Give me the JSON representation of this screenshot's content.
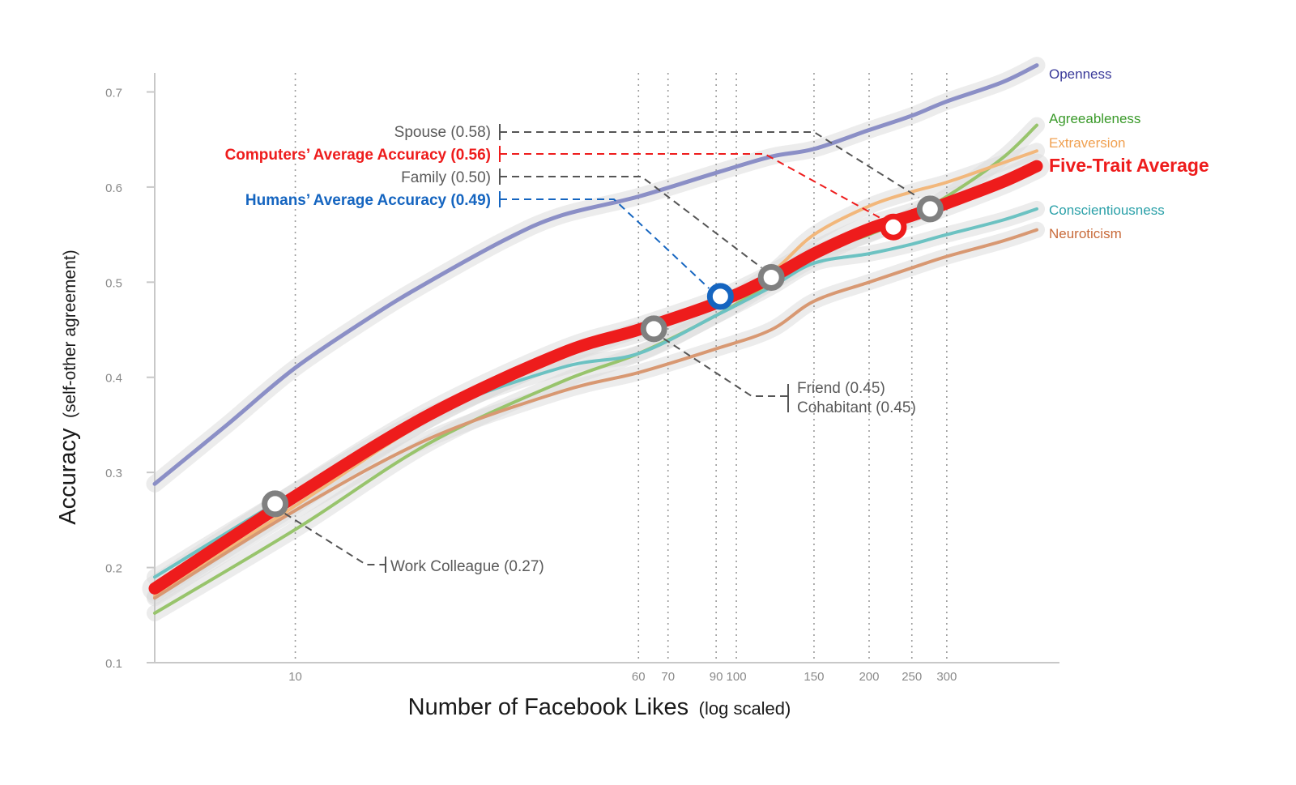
{
  "chart_data": {
    "type": "line",
    "xlabel": "Number of Facebook Likes",
    "xlabel_note": "(log scaled)",
    "ylabel": "Accuracy",
    "ylabel_note": "(self-other agreement)",
    "x_scale": "log",
    "xlim": [
      4.8,
      480
    ],
    "ylim": [
      0.1,
      0.72
    ],
    "y_ticks": [
      0.1,
      0.2,
      0.3,
      0.4,
      0.5,
      0.6,
      0.7
    ],
    "y_tick_labels": [
      "0.1",
      "0.2",
      "0.3",
      "0.4",
      "0.5",
      "0.6",
      "0.7"
    ],
    "x_ticks": [
      10,
      60,
      70,
      90,
      100,
      150,
      200,
      250,
      300
    ],
    "x_tick_labels": [
      "10",
      "60",
      "70",
      "90",
      "100",
      "150",
      "200",
      "250",
      "300"
    ],
    "grid": "vertical dotted at x ticks",
    "series": [
      {
        "name": "Openness",
        "color": "#8b8fc6",
        "width": 5,
        "x": [
          4.8,
          7,
          10,
          15,
          20,
          30,
          40,
          60,
          90,
          120,
          150,
          200,
          250,
          300,
          400,
          480
        ],
        "y": [
          0.288,
          0.35,
          0.41,
          0.465,
          0.5,
          0.545,
          0.57,
          0.59,
          0.615,
          0.632,
          0.64,
          0.66,
          0.675,
          0.69,
          0.71,
          0.728
        ]
      },
      {
        "name": "Agreeableness",
        "color": "#98c46c",
        "width": 4,
        "x": [
          4.8,
          10,
          20,
          40,
          60,
          90,
          120,
          150,
          200,
          250,
          300,
          400,
          480
        ],
        "y": [
          0.152,
          0.24,
          0.33,
          0.395,
          0.425,
          0.465,
          0.5,
          0.53,
          0.55,
          0.57,
          0.59,
          0.63,
          0.665
        ]
      },
      {
        "name": "Extraversion",
        "color": "#f2b77b",
        "width": 4,
        "x": [
          4.8,
          10,
          20,
          40,
          60,
          90,
          120,
          150,
          200,
          250,
          300,
          400,
          480
        ],
        "y": [
          0.17,
          0.265,
          0.355,
          0.42,
          0.45,
          0.475,
          0.51,
          0.55,
          0.58,
          0.595,
          0.605,
          0.625,
          0.638
        ]
      },
      {
        "name": "Conscientiousness",
        "color": "#6cc2c2",
        "width": 4,
        "x": [
          4.8,
          10,
          20,
          40,
          60,
          90,
          120,
          150,
          200,
          250,
          300,
          400,
          480
        ],
        "y": [
          0.19,
          0.28,
          0.36,
          0.41,
          0.425,
          0.465,
          0.495,
          0.52,
          0.53,
          0.54,
          0.55,
          0.565,
          0.577
        ]
      },
      {
        "name": "Neuroticism",
        "color": "#d89872",
        "width": 4,
        "x": [
          4.8,
          10,
          20,
          40,
          60,
          90,
          120,
          150,
          200,
          250,
          300,
          400,
          480
        ],
        "y": [
          0.168,
          0.26,
          0.335,
          0.385,
          0.405,
          0.43,
          0.45,
          0.48,
          0.5,
          0.515,
          0.527,
          0.543,
          0.555
        ]
      },
      {
        "name": "Five-Trait Average",
        "color": "#ee1c1c",
        "width": 15,
        "x": [
          4.8,
          10,
          20,
          40,
          60,
          90,
          120,
          150,
          200,
          250,
          300,
          400,
          480
        ],
        "y": [
          0.178,
          0.275,
          0.36,
          0.425,
          0.45,
          0.478,
          0.505,
          0.53,
          0.556,
          0.57,
          0.583,
          0.605,
          0.622
        ]
      }
    ],
    "markers": [
      {
        "label": "Work Colleague (0.27)",
        "x": 9,
        "y": 0.267,
        "color": "#808080"
      },
      {
        "label": "Friend (0.45)",
        "x": 65,
        "y": 0.451,
        "color": "#808080"
      },
      {
        "label": "Cohabitant (0.45)",
        "x": 65,
        "y": 0.451,
        "color": "#808080"
      },
      {
        "label": "Humans’ Average Accuracy (0.49)",
        "x": 92,
        "y": 0.485,
        "color": "#1565c0"
      },
      {
        "label": "Family (0.50)",
        "x": 120,
        "y": 0.505,
        "color": "#808080"
      },
      {
        "label": "Computers’ Average Accuracy (0.56)",
        "x": 227,
        "y": 0.558,
        "color": "#ee1c1c"
      },
      {
        "label": "Spouse (0.58)",
        "x": 275,
        "y": 0.577,
        "color": "#808080"
      }
    ]
  },
  "annotations": {
    "spouse": "Spouse (0.58)",
    "computers": "Computers’ Average Accuracy (0.56)",
    "family": "Family (0.50)",
    "humans": "Humans’ Average Accuracy (0.49)",
    "friend": "Friend (0.45)",
    "cohabitant": "Cohabitant (0.45)",
    "work": "Work Colleague (0.27)"
  },
  "colors": {
    "axis": "#c8c8c8",
    "grid": "#9a9a9a",
    "band": "#dcdcdc",
    "marker_gray": "#808080",
    "marker_blue": "#1565c0",
    "marker_red": "#ee1c1c",
    "leader_gray": "#555555",
    "leader_red": "#ee1c1c",
    "leader_blue": "#1565c0"
  }
}
